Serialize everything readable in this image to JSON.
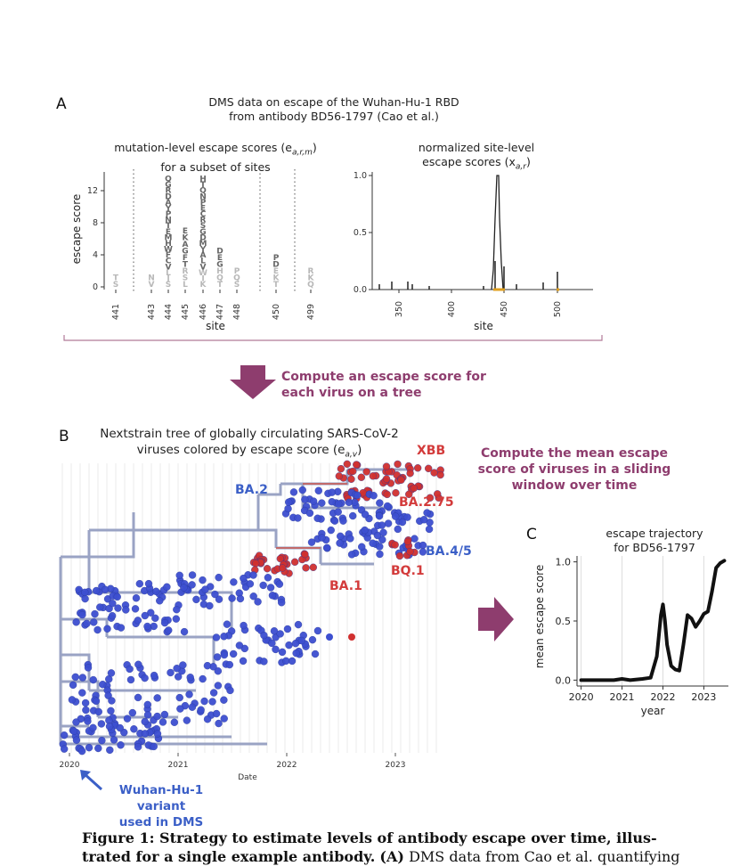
{
  "panelA": {
    "letter": "A",
    "title_line1": "DMS data on escape of the Wuhan-Hu-1 RBD",
    "title_line2": "from antibody BD56-1797 (Cao et al.)",
    "left_title_line1": "mutation-level escape scores (e",
    "left_title_sub": "a,r,m",
    "left_title_line1_end": ")",
    "left_title_line2": "for a subset of sites",
    "right_title_line1": "normalized site-level",
    "right_title_line2": "escape scores (x",
    "right_title_sub": "a,r",
    "right_title_line2_end": ")",
    "ylabel": "escape score",
    "left_yticks": [
      "0",
      "4",
      "8",
      "12"
    ],
    "left_sites": [
      "441",
      "443",
      "444",
      "445",
      "446",
      "447",
      "448",
      "450",
      "499"
    ],
    "left_xlabel": "site",
    "right_yticks": [
      "0.0",
      "0.5",
      "1.0"
    ],
    "right_xticks": [
      "350",
      "400",
      "450",
      "500"
    ],
    "right_xlabel": "site",
    "logo_stacks": [
      {
        "site": "441",
        "letters": "TS"
      },
      {
        "site": "443",
        "letters": "NV"
      },
      {
        "site": "444",
        "letters": "QGRDAYPNTEMHWFCVLIS"
      },
      {
        "site": "445",
        "letters": "EKAGFTRSL"
      },
      {
        "site": "446",
        "letters": "HTQNPECRSGDMYALVWIK"
      },
      {
        "site": "447",
        "letters": "DEGHQT"
      },
      {
        "site": "448",
        "letters": "PQS"
      },
      {
        "site": "450",
        "letters": "PDEKT"
      },
      {
        "site": "499",
        "letters": "RKQ"
      }
    ]
  },
  "arrow1": {
    "label_line1": "Compute an escape score for",
    "label_line2": "each virus on a tree"
  },
  "panelB": {
    "letter": "B",
    "title_line1": "Nextstrain tree of globally circulating SARS-CoV-2",
    "title_line2": "viruses colored by escape score (e",
    "title_sub": "a,v",
    "title_end": ")",
    "clades": {
      "xbb": "XBB",
      "ba275": "BA.2.75",
      "ba2": "BA.2",
      "ba45": "BA.4/5",
      "bq1": "BQ.1",
      "ba1": "BA.1"
    },
    "xticks": [
      "2020",
      "2021",
      "2022",
      "2023"
    ],
    "xlabel": "Date",
    "wuhan_line1": "Wuhan-Hu-1 variant",
    "wuhan_line2": "used in DMS"
  },
  "arrow2": {
    "label_line1": "Compute the mean escape",
    "label_line2": "score of viruses in a sliding",
    "label_line3": "window over time"
  },
  "panelC": {
    "letter": "C",
    "title_line1": "escape trajectory",
    "title_line2": "for BD56-1797",
    "ylabel": "mean escape score",
    "xlabel": "year"
  },
  "chart_data": {
    "type": "line",
    "title": "escape trajectory for BD56-1797",
    "xlabel": "year",
    "ylabel": "mean escape score",
    "xticks": [
      "2020",
      "2021",
      "2022",
      "2023"
    ],
    "yticks": [
      "0.0",
      "0.5",
      "1.0"
    ],
    "xlim": [
      2019.9,
      2023.6
    ],
    "ylim": [
      -0.05,
      1.05
    ],
    "x": [
      2020.0,
      2020.3,
      2020.6,
      2020.8,
      2021.0,
      2021.2,
      2021.5,
      2021.7,
      2021.85,
      2021.95,
      2022.0,
      2022.05,
      2022.1,
      2022.2,
      2022.3,
      2022.4,
      2022.5,
      2022.6,
      2022.7,
      2022.8,
      2022.9,
      2023.0,
      2023.1,
      2023.2,
      2023.3,
      2023.4,
      2023.5
    ],
    "y": [
      0.0,
      0.0,
      0.0,
      0.0,
      0.01,
      0.0,
      0.01,
      0.02,
      0.2,
      0.55,
      0.64,
      0.5,
      0.3,
      0.12,
      0.09,
      0.08,
      0.3,
      0.55,
      0.52,
      0.45,
      0.5,
      0.56,
      0.58,
      0.75,
      0.95,
      0.99,
      1.01
    ]
  },
  "caption": {
    "bold_part": "Figure 1: Strategy to estimate levels of antibody escape over time, illus-",
    "bold_part2": "trated for a single example antibody.",
    "bold_A": "(A)",
    "rest": "DMS data from Cao et al. quantifying"
  },
  "colors": {
    "purple": "#8e3d6e",
    "red": "#d33b3b",
    "blue": "#3b5fc7",
    "gold": "#e0a020",
    "line": "#111111"
  }
}
